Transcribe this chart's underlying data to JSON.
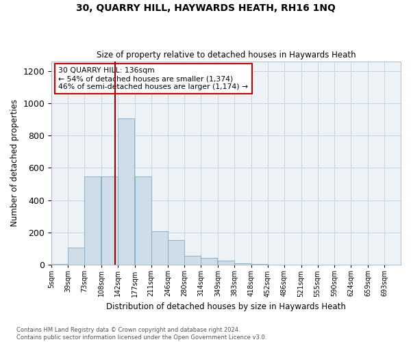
{
  "title": "30, QUARRY HILL, HAYWARDS HEATH, RH16 1NQ",
  "subtitle": "Size of property relative to detached houses in Haywards Heath",
  "xlabel": "Distribution of detached houses by size in Haywards Heath",
  "ylabel": "Number of detached properties",
  "bins": [
    5,
    39,
    73,
    108,
    142,
    177,
    211,
    246,
    280,
    314,
    349,
    383,
    418,
    452,
    486,
    521,
    555,
    590,
    624,
    659,
    693
  ],
  "bin_labels": [
    "5sqm",
    "39sqm",
    "73sqm",
    "108sqm",
    "142sqm",
    "177sqm",
    "211sqm",
    "246sqm",
    "280sqm",
    "314sqm",
    "349sqm",
    "383sqm",
    "418sqm",
    "452sqm",
    "486sqm",
    "521sqm",
    "555sqm",
    "590sqm",
    "624sqm",
    "659sqm",
    "693sqm"
  ],
  "counts": [
    5,
    105,
    545,
    545,
    905,
    545,
    210,
    155,
    55,
    45,
    25,
    8,
    5,
    0,
    0,
    0,
    0,
    0,
    0,
    0
  ],
  "bar_color": "#cfdde8",
  "bar_edge_color": "#7aaac8",
  "property_line_x": 136,
  "property_line_color": "#990000",
  "annotation_text": "30 QUARRY HILL: 136sqm\n← 54% of detached houses are smaller (1,374)\n46% of semi-detached houses are larger (1,174) →",
  "annotation_box_color": "#ffffff",
  "annotation_box_edge": "#cc0000",
  "ylim": [
    0,
    1260
  ],
  "yticks": [
    0,
    200,
    400,
    600,
    800,
    1000,
    1200
  ],
  "footer_line1": "Contains HM Land Registry data © Crown copyright and database right 2024.",
  "footer_line2": "Contains public sector information licensed under the Open Government Licence v3.0.",
  "bg_color": "#edf2f7",
  "grid_color": "#c8d4de"
}
